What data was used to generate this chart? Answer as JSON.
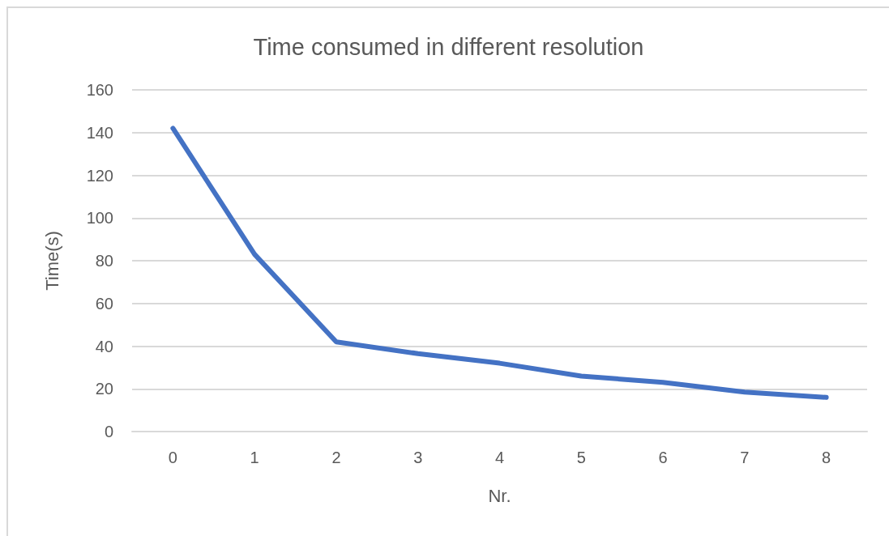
{
  "chart_data": {
    "type": "line",
    "title": "Time consumed in different resolution",
    "xlabel": "Nr.",
    "ylabel": "Time(s)",
    "categories": [
      "0",
      "1",
      "2",
      "3",
      "4",
      "5",
      "6",
      "7",
      "8"
    ],
    "series": [
      {
        "color": "#4472c4",
        "values": [
          142,
          83,
          42,
          36.5,
          32,
          26,
          23,
          18.5,
          16
        ]
      }
    ],
    "ylim": [
      0,
      160
    ],
    "yticks": [
      0,
      20,
      40,
      60,
      80,
      100,
      120,
      140,
      160
    ],
    "grid": "y",
    "marker": "none",
    "line_style": "solid"
  }
}
